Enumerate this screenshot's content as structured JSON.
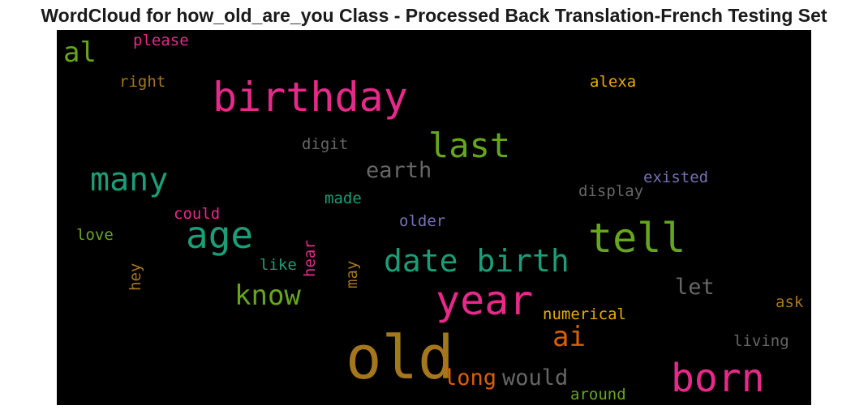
{
  "title": "WordCloud for how_old_are_you Class - Processed Back Translation-French Testing Set",
  "words": [
    {
      "text": "please",
      "color": "#e7298a"
    },
    {
      "text": "al",
      "color": "#66a61e"
    },
    {
      "text": "right",
      "color": "#a6761d"
    },
    {
      "text": "birthday",
      "color": "#e7298a"
    },
    {
      "text": "alexa",
      "color": "#e6ab02"
    },
    {
      "text": "last",
      "color": "#66a61e"
    },
    {
      "text": "digit",
      "color": "#666666"
    },
    {
      "text": "earth",
      "color": "#666666"
    },
    {
      "text": "many",
      "color": "#1b9e77"
    },
    {
      "text": "existed",
      "color": "#7570b3"
    },
    {
      "text": "display",
      "color": "#666666"
    },
    {
      "text": "made",
      "color": "#1b9e77"
    },
    {
      "text": "could",
      "color": "#e7298a"
    },
    {
      "text": "age",
      "color": "#1b9e77"
    },
    {
      "text": "tell",
      "color": "#66a61e"
    },
    {
      "text": "older",
      "color": "#7570b3"
    },
    {
      "text": "love",
      "color": "#66a61e"
    },
    {
      "text": "like",
      "color": "#1b9e77"
    },
    {
      "text": "hear",
      "color": "#e7298a"
    },
    {
      "text": "date birth",
      "color": "#1b9e77"
    },
    {
      "text": "hey",
      "color": "#a6761d"
    },
    {
      "text": "may",
      "color": "#a6761d"
    },
    {
      "text": "know",
      "color": "#66a61e"
    },
    {
      "text": "let",
      "color": "#666666"
    },
    {
      "text": "year",
      "color": "#e7298a"
    },
    {
      "text": "numerical",
      "color": "#e6ab02"
    },
    {
      "text": "ask",
      "color": "#a6761d"
    },
    {
      "text": "ai",
      "color": "#d95f02"
    },
    {
      "text": "living",
      "color": "#666666"
    },
    {
      "text": "old",
      "color": "#a6761d"
    },
    {
      "text": "long",
      "color": "#d95f02"
    },
    {
      "text": "would",
      "color": "#666666"
    },
    {
      "text": "born",
      "color": "#e7298a"
    },
    {
      "text": "around",
      "color": "#66a61e"
    }
  ]
}
